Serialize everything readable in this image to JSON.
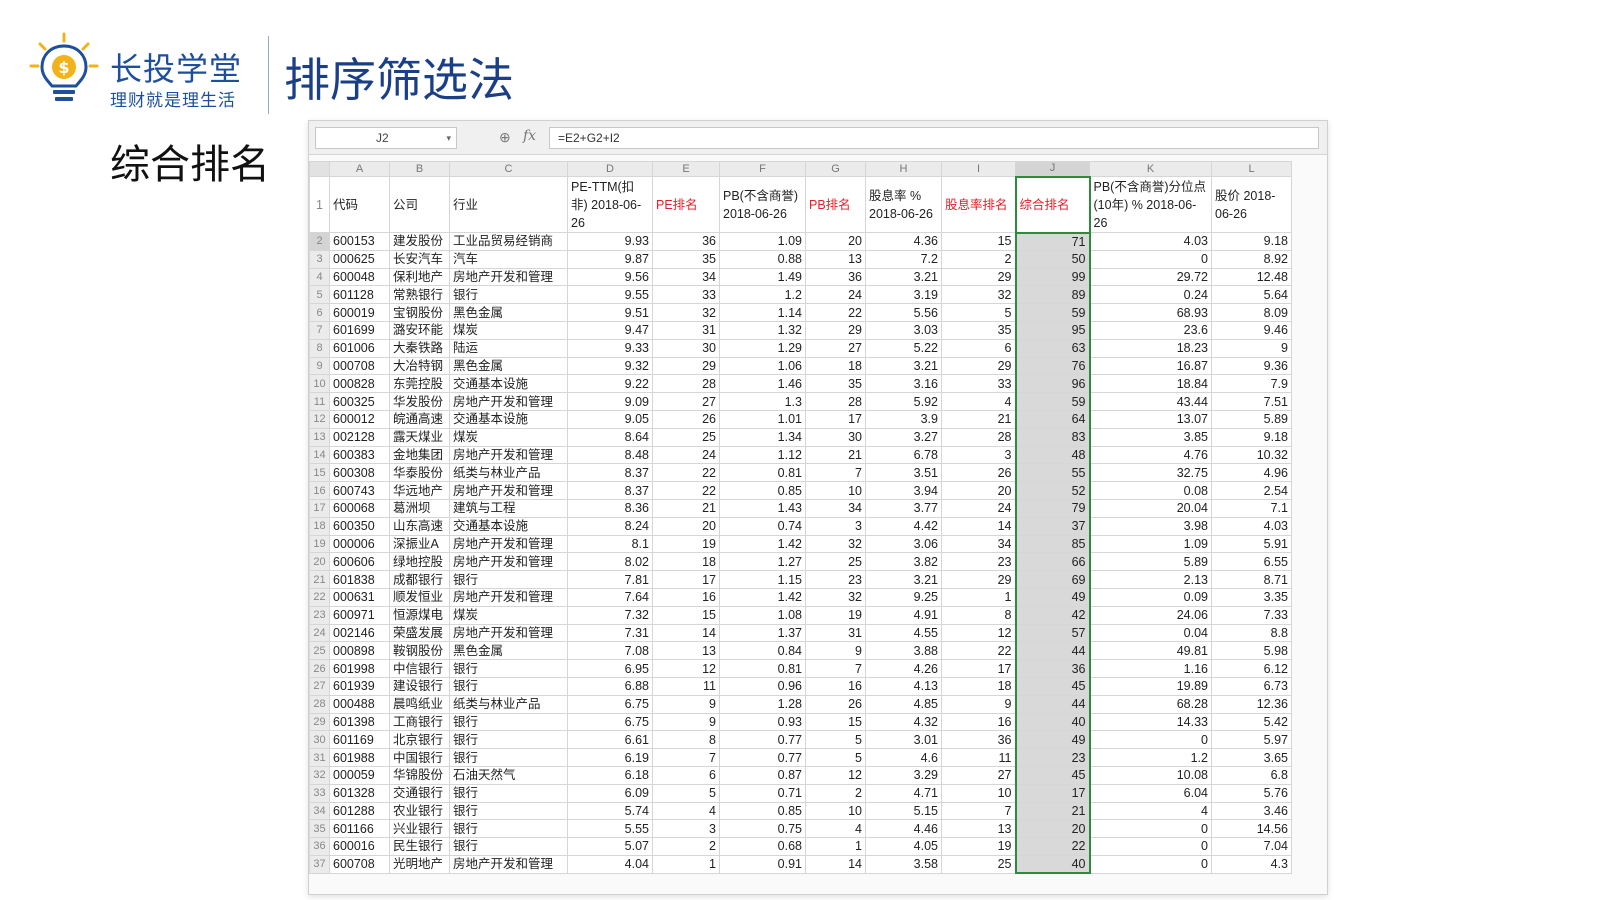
{
  "brand": {
    "name": "长投学堂",
    "slogan": "理财就是理生活",
    "logo_icon": "lightbulb-dollar-icon",
    "accent_color": "#1f4e9c"
  },
  "page_title": "排序筛选法",
  "section_title": "综合排名",
  "spreadsheet": {
    "name_box": "J2",
    "formula": "=E2+G2+I2",
    "column_letters": [
      "A",
      "B",
      "C",
      "D",
      "E",
      "F",
      "G",
      "H",
      "I",
      "J",
      "K",
      "L"
    ],
    "headers": [
      {
        "text": "代码",
        "red": false
      },
      {
        "text": "公司",
        "red": false
      },
      {
        "text": "行业",
        "red": false
      },
      {
        "text": "PE-TTM(扣非) 2018-06-26",
        "red": false
      },
      {
        "text": "PE排名",
        "red": true
      },
      {
        "text": "PB(不含商誉) 2018-06-26",
        "red": false
      },
      {
        "text": "PB排名",
        "red": true
      },
      {
        "text": "股息率 % 2018-06-26",
        "red": false
      },
      {
        "text": "股息率排名",
        "red": true
      },
      {
        "text": "综合排名",
        "red": true
      },
      {
        "text": "PB(不含商誉)分位点(10年) % 2018-06-26",
        "red": false
      },
      {
        "text": "股价 2018-06-26",
        "red": false
      }
    ],
    "rows": [
      [
        "600153",
        "建发股份",
        "工业品贸易经销商",
        "9.93",
        "36",
        "1.09",
        "20",
        "4.36",
        "15",
        "71",
        "4.03",
        "9.18"
      ],
      [
        "000625",
        "长安汽车",
        "汽车",
        "9.87",
        "35",
        "0.88",
        "13",
        "7.2",
        "2",
        "50",
        "0",
        "8.92"
      ],
      [
        "600048",
        "保利地产",
        "房地产开发和管理",
        "9.56",
        "34",
        "1.49",
        "36",
        "3.21",
        "29",
        "99",
        "29.72",
        "12.48"
      ],
      [
        "601128",
        "常熟银行",
        "银行",
        "9.55",
        "33",
        "1.2",
        "24",
        "3.19",
        "32",
        "89",
        "0.24",
        "5.64"
      ],
      [
        "600019",
        "宝钢股份",
        "黑色金属",
        "9.51",
        "32",
        "1.14",
        "22",
        "5.56",
        "5",
        "59",
        "68.93",
        "8.09"
      ],
      [
        "601699",
        "潞安环能",
        "煤炭",
        "9.47",
        "31",
        "1.32",
        "29",
        "3.03",
        "35",
        "95",
        "23.6",
        "9.46"
      ],
      [
        "601006",
        "大秦铁路",
        "陆运",
        "9.33",
        "30",
        "1.29",
        "27",
        "5.22",
        "6",
        "63",
        "18.23",
        "9"
      ],
      [
        "000708",
        "大冶特钢",
        "黑色金属",
        "9.32",
        "29",
        "1.06",
        "18",
        "3.21",
        "29",
        "76",
        "16.87",
        "9.36"
      ],
      [
        "000828",
        "东莞控股",
        "交通基本设施",
        "9.22",
        "28",
        "1.46",
        "35",
        "3.16",
        "33",
        "96",
        "18.84",
        "7.9"
      ],
      [
        "600325",
        "华发股份",
        "房地产开发和管理",
        "9.09",
        "27",
        "1.3",
        "28",
        "5.92",
        "4",
        "59",
        "43.44",
        "7.51"
      ],
      [
        "600012",
        "皖通高速",
        "交通基本设施",
        "9.05",
        "26",
        "1.01",
        "17",
        "3.9",
        "21",
        "64",
        "13.07",
        "5.89"
      ],
      [
        "002128",
        "露天煤业",
        "煤炭",
        "8.64",
        "25",
        "1.34",
        "30",
        "3.27",
        "28",
        "83",
        "3.85",
        "9.18"
      ],
      [
        "600383",
        "金地集团",
        "房地产开发和管理",
        "8.48",
        "24",
        "1.12",
        "21",
        "6.78",
        "3",
        "48",
        "4.76",
        "10.32"
      ],
      [
        "600308",
        "华泰股份",
        "纸类与林业产品",
        "8.37",
        "22",
        "0.81",
        "7",
        "3.51",
        "26",
        "55",
        "32.75",
        "4.96"
      ],
      [
        "600743",
        "华远地产",
        "房地产开发和管理",
        "8.37",
        "22",
        "0.85",
        "10",
        "3.94",
        "20",
        "52",
        "0.08",
        "2.54"
      ],
      [
        "600068",
        "葛洲坝",
        "建筑与工程",
        "8.36",
        "21",
        "1.43",
        "34",
        "3.77",
        "24",
        "79",
        "20.04",
        "7.1"
      ],
      [
        "600350",
        "山东高速",
        "交通基本设施",
        "8.24",
        "20",
        "0.74",
        "3",
        "4.42",
        "14",
        "37",
        "3.98",
        "4.03"
      ],
      [
        "000006",
        "深振业A",
        "房地产开发和管理",
        "8.1",
        "19",
        "1.42",
        "32",
        "3.06",
        "34",
        "85",
        "1.09",
        "5.91"
      ],
      [
        "600606",
        "绿地控股",
        "房地产开发和管理",
        "8.02",
        "18",
        "1.27",
        "25",
        "3.82",
        "23",
        "66",
        "5.89",
        "6.55"
      ],
      [
        "601838",
        "成都银行",
        "银行",
        "7.81",
        "17",
        "1.15",
        "23",
        "3.21",
        "29",
        "69",
        "2.13",
        "8.71"
      ],
      [
        "000631",
        "顺发恒业",
        "房地产开发和管理",
        "7.64",
        "16",
        "1.42",
        "32",
        "9.25",
        "1",
        "49",
        "0.09",
        "3.35"
      ],
      [
        "600971",
        "恒源煤电",
        "煤炭",
        "7.32",
        "15",
        "1.08",
        "19",
        "4.91",
        "8",
        "42",
        "24.06",
        "7.33"
      ],
      [
        "002146",
        "荣盛发展",
        "房地产开发和管理",
        "7.31",
        "14",
        "1.37",
        "31",
        "4.55",
        "12",
        "57",
        "0.04",
        "8.8"
      ],
      [
        "000898",
        "鞍钢股份",
        "黑色金属",
        "7.08",
        "13",
        "0.84",
        "9",
        "3.88",
        "22",
        "44",
        "49.81",
        "5.98"
      ],
      [
        "601998",
        "中信银行",
        "银行",
        "6.95",
        "12",
        "0.81",
        "7",
        "4.26",
        "17",
        "36",
        "1.16",
        "6.12"
      ],
      [
        "601939",
        "建设银行",
        "银行",
        "6.88",
        "11",
        "0.96",
        "16",
        "4.13",
        "18",
        "45",
        "19.89",
        "6.73"
      ],
      [
        "000488",
        "晨鸣纸业",
        "纸类与林业产品",
        "6.75",
        "9",
        "1.28",
        "26",
        "4.85",
        "9",
        "44",
        "68.28",
        "12.36"
      ],
      [
        "601398",
        "工商银行",
        "银行",
        "6.75",
        "9",
        "0.93",
        "15",
        "4.32",
        "16",
        "40",
        "14.33",
        "5.42"
      ],
      [
        "601169",
        "北京银行",
        "银行",
        "6.61",
        "8",
        "0.77",
        "5",
        "3.01",
        "36",
        "49",
        "0",
        "5.97"
      ],
      [
        "601988",
        "中国银行",
        "银行",
        "6.19",
        "7",
        "0.77",
        "5",
        "4.6",
        "11",
        "23",
        "1.2",
        "3.65"
      ],
      [
        "000059",
        "华锦股份",
        "石油天然气",
        "6.18",
        "6",
        "0.87",
        "12",
        "3.29",
        "27",
        "45",
        "10.08",
        "6.8"
      ],
      [
        "601328",
        "交通银行",
        "银行",
        "6.09",
        "5",
        "0.71",
        "2",
        "4.71",
        "10",
        "17",
        "6.04",
        "5.76"
      ],
      [
        "601288",
        "农业银行",
        "银行",
        "5.74",
        "4",
        "0.85",
        "10",
        "5.15",
        "7",
        "21",
        "4",
        "3.46"
      ],
      [
        "601166",
        "兴业银行",
        "银行",
        "5.55",
        "3",
        "0.75",
        "4",
        "4.46",
        "13",
        "20",
        "0",
        "14.56"
      ],
      [
        "600016",
        "民生银行",
        "银行",
        "5.07",
        "2",
        "0.68",
        "1",
        "4.05",
        "19",
        "22",
        "0",
        "7.04"
      ],
      [
        "600708",
        "光明地产",
        "房地产开发和管理",
        "4.04",
        "1",
        "0.91",
        "14",
        "3.58",
        "25",
        "40",
        "0",
        "4.3"
      ]
    ]
  }
}
